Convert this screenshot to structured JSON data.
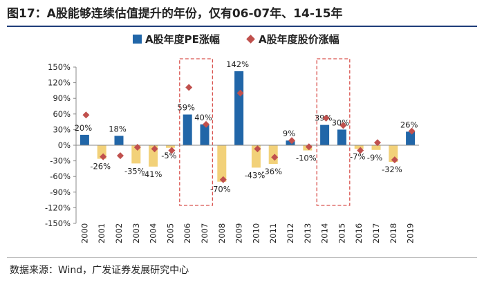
{
  "title": "图17：A股能够连续估值提升的年份，仅有06-07年、14-15年",
  "source": "数据来源：Wind，广发证券发展研究中心",
  "colors": {
    "positive_bar": "#2166a8",
    "negative_bar": "#f2d179",
    "marker": "#c0504d",
    "highlight_box": "#d9534f",
    "axis": "#888888"
  },
  "legend": [
    {
      "label": "A股年度PE涨幅",
      "swatch": "bar"
    },
    {
      "label": "A股年度股价涨幅",
      "swatch": "diamond"
    }
  ],
  "chart_data": {
    "type": "bar",
    "title": "",
    "xlabel": "",
    "ylabel": "",
    "ylim": [
      -150,
      150
    ],
    "y_ticks": [
      150,
      120,
      90,
      60,
      30,
      0,
      -30,
      -60,
      -90,
      -120,
      -150
    ],
    "y_tick_labels": [
      "150%",
      "120%",
      "90%",
      "60%",
      "30%",
      "0%",
      "-30%",
      "-60%",
      "-90%",
      "-120%",
      "-150%"
    ],
    "categories": [
      "2000",
      "2001",
      "2002",
      "2003",
      "2004",
      "2005",
      "2006",
      "2007",
      "2008",
      "2009",
      "2010",
      "2011",
      "2012",
      "2013",
      "2014",
      "2015",
      "2016",
      "2017",
      "2018",
      "2019"
    ],
    "series": [
      {
        "name": "A股年度PE涨幅",
        "kind": "bar",
        "values": [
          20,
          -26,
          18,
          -35,
          -41,
          -5,
          59,
          40,
          -70,
          142,
          -43,
          -36,
          9,
          -10,
          39,
          30,
          -7,
          -9,
          -32,
          26
        ],
        "data_labels": [
          "20%",
          "-26%",
          "18%",
          "-35%",
          "-41%",
          "-5%",
          "59%",
          "40%",
          "-70%",
          "142%",
          "-43%",
          "-36%",
          "9%",
          "-10%",
          "39%",
          "30%",
          "-7%",
          "-9%",
          "-32%",
          "26%"
        ]
      },
      {
        "name": "A股年度股价涨幅",
        "kind": "marker",
        "values": [
          58,
          -22,
          -20,
          -4,
          -7,
          -10,
          111,
          40,
          -66,
          100,
          -7,
          -23,
          9,
          -3,
          52,
          38,
          -10,
          5,
          -28,
          27
        ]
      }
    ],
    "highlights": [
      {
        "from": "2006",
        "to": "2007"
      },
      {
        "from": "2014",
        "to": "2015"
      }
    ],
    "grid": false
  }
}
